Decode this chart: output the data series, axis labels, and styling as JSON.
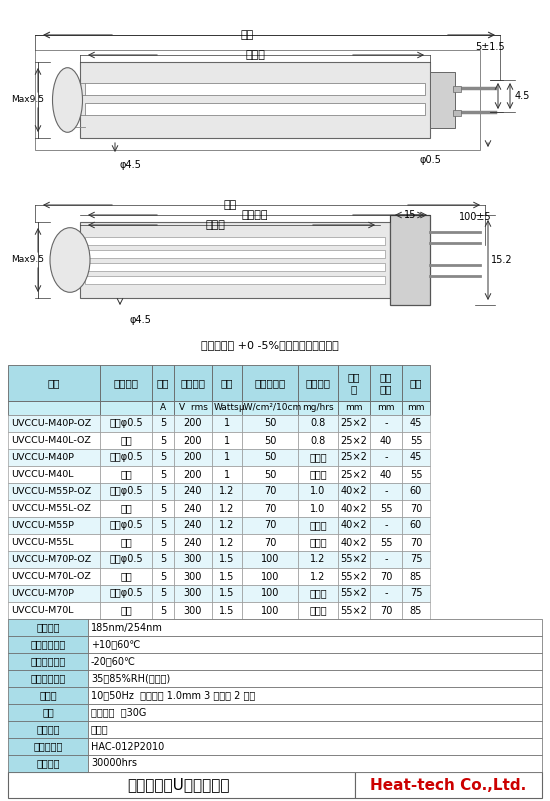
{
  "bg_color": "#f0f0f0",
  "page_bg": "#ffffff",
  "title_bottom": "冷陰極微型U管紫外線燈",
  "title_bottom_right": "Heat-tech Co.,Ltd.",
  "tolerance_note": "產品公差為 +0 -5%，因為它是玻璃產品",
  "table_header_bg": "#aadde8",
  "table_header_bg2": "#c8eef5",
  "table_row_bg_odd": "#ffffff",
  "table_row_bg_even": "#e8f8fc",
  "col_headers": [
    "型號",
    "端子形狀",
    "電流",
    "有效電壓",
    "電力",
    "紫外線強度",
    "臭氧發生",
    "發射\n長",
    "玻璃\n管長",
    "全長"
  ],
  "col_subheaders": [
    "",
    "",
    "A",
    "V  rms",
    "Watts",
    "μW/cm²/10cm",
    "mg/hrs",
    "mm",
    "mm",
    "mm"
  ],
  "rows": [
    [
      "UVCCU-M40P-OZ",
      "銷釘φ0.5",
      "5",
      "200",
      "1",
      "50",
      "0.8",
      "25×2",
      "-",
      "45"
    ],
    [
      "UVCCU-M40L-OZ",
      "導線",
      "5",
      "200",
      "1",
      "50",
      "0.8",
      "25×2",
      "40",
      "55"
    ],
    [
      "UVCCU-M40P",
      "銷釘φ0.5",
      "5",
      "200",
      "1",
      "50",
      "無臭氧",
      "25×2",
      "-",
      "45"
    ],
    [
      "UVCCU-M40L",
      "導線",
      "5",
      "200",
      "1",
      "50",
      "無臭氧",
      "25×2",
      "40",
      "55"
    ],
    [
      "UVCCU-M55P-OZ",
      "銷釘φ0.5",
      "5",
      "240",
      "1.2",
      "70",
      "1.0",
      "40×2",
      "-",
      "60"
    ],
    [
      "UVCCU-M55L-OZ",
      "導線",
      "5",
      "240",
      "1.2",
      "70",
      "1.0",
      "40×2",
      "55",
      "70"
    ],
    [
      "UVCCU-M55P",
      "銷釘φ0.5",
      "5",
      "240",
      "1.2",
      "70",
      "無臭氧",
      "40×2",
      "-",
      "60"
    ],
    [
      "UVCCU-M55L",
      "導線",
      "5",
      "240",
      "1.2",
      "70",
      "無臭氧",
      "40×2",
      "55",
      "70"
    ],
    [
      "UVCCU-M70P-OZ",
      "銷釘φ0.5",
      "5",
      "300",
      "1.5",
      "100",
      "1.2",
      "55×2",
      "-",
      "75"
    ],
    [
      "UVCCU-M70L-OZ",
      "導線",
      "5",
      "300",
      "1.5",
      "100",
      "1.2",
      "55×2",
      "70",
      "85"
    ],
    [
      "UVCCU-M70P",
      "銷釘φ0.5",
      "5",
      "300",
      "1.5",
      "100",
      "無臭氧",
      "55×2",
      "-",
      "75"
    ],
    [
      "UVCCU-M70L",
      "導線",
      "5",
      "300",
      "1.5",
      "100",
      "無臭氧",
      "55×2",
      "70",
      "85"
    ]
  ],
  "specs": [
    [
      "發射波長",
      "185nm/254nm"
    ],
    [
      "工作溫度範圍",
      "+10～60℃"
    ],
    [
      "儲存溫度範圍",
      "-20～60℃"
    ],
    [
      "工作溼度範圍",
      "35～85%RH(無凝露)"
    ],
    [
      "抗振性",
      "10～50Hz  振動寬度 1.0mm 3 個方向 2 小時"
    ],
    [
      "防震",
      "自然落下  約30G"
    ],
    [
      "照明方式",
      "逆變器"
    ],
    [
      "推薦逆變器",
      "HAC-012P2010"
    ],
    [
      "設計壽命",
      "30000hrs"
    ]
  ]
}
